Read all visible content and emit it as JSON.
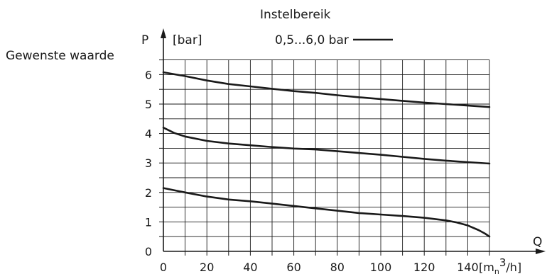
{
  "chart_data": {
    "type": "line",
    "title": "Instelbereik",
    "side_label": "Gewenste waarde",
    "ylabel": "P",
    "yunit": "[bar]",
    "xlabel": "Q",
    "xunit_main": "[m",
    "xunit_sub": "n",
    "xunit_sup": "3",
    "xunit_tail": "/h]",
    "legend": "0,5...6,0 bar",
    "xlim": [
      0,
      150
    ],
    "ylim": [
      0,
      6.5
    ],
    "xticks": [
      0,
      20,
      40,
      60,
      80,
      100,
      120,
      140
    ],
    "yticks": [
      0,
      1,
      2,
      3,
      4,
      5,
      6
    ],
    "grid": true,
    "series": [
      {
        "x": [
          0,
          10,
          20,
          30,
          40,
          50,
          60,
          70,
          80,
          90,
          100,
          110,
          120,
          130,
          140,
          150
        ],
        "values": [
          6.08,
          5.95,
          5.8,
          5.68,
          5.6,
          5.52,
          5.44,
          5.38,
          5.3,
          5.23,
          5.17,
          5.11,
          5.05,
          5.0,
          4.95,
          4.9
        ]
      },
      {
        "x": [
          0,
          5,
          10,
          20,
          30,
          40,
          50,
          60,
          70,
          80,
          90,
          100,
          110,
          120,
          130,
          140,
          150
        ],
        "values": [
          4.2,
          4.02,
          3.9,
          3.75,
          3.66,
          3.6,
          3.54,
          3.49,
          3.46,
          3.4,
          3.34,
          3.28,
          3.21,
          3.14,
          3.08,
          3.03,
          2.98
        ]
      },
      {
        "x": [
          0,
          10,
          20,
          30,
          40,
          50,
          60,
          70,
          80,
          90,
          100,
          110,
          120,
          130,
          135,
          140,
          145,
          148,
          150
        ],
        "values": [
          2.15,
          2.0,
          1.86,
          1.76,
          1.7,
          1.62,
          1.54,
          1.46,
          1.38,
          1.3,
          1.25,
          1.2,
          1.14,
          1.05,
          0.98,
          0.88,
          0.72,
          0.6,
          0.5
        ]
      }
    ],
    "colors": {
      "line": "#1a1a1a",
      "grid": "#1a1a1a",
      "text": "#1a1a1a"
    }
  }
}
